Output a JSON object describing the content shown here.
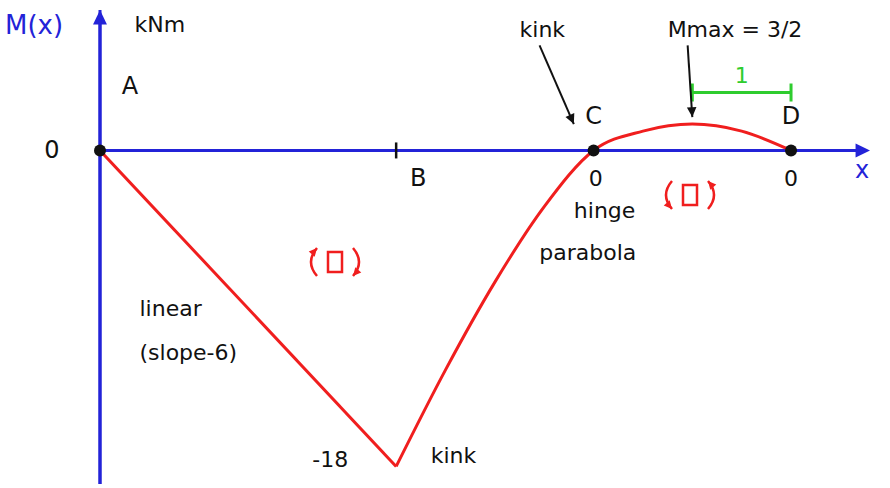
{
  "chart_data": {
    "type": "line",
    "ylabel": "M(x)",
    "xlabel": "x",
    "xlim": [
      0,
      7.8
    ],
    "ylim": [
      -19,
      8
    ],
    "yticks": [
      0
    ],
    "tick_labels": "y",
    "grid": false,
    "series": [
      {
        "type": "line",
        "line_style": "straight",
        "color": "#f01e1e",
        "x": [
          0,
          3
        ],
        "values": [
          0,
          -18
        ]
      },
      {
        "type": "line",
        "line_style": "smooth",
        "color": "#f01e1e",
        "x": [
          3,
          3.5,
          4,
          4.5,
          5,
          5.5,
          6,
          6.5,
          7
        ],
        "values": [
          -18,
          -12.5,
          -7.5,
          -3.2,
          0,
          1.1,
          1.5,
          1.1,
          0
        ]
      }
    ],
    "points": [
      {
        "label": "A",
        "x": 0,
        "y": 0,
        "marker": "dot"
      },
      {
        "label": "B",
        "x": 3,
        "y": 0,
        "marker": "tick"
      },
      {
        "label": "C",
        "x": 5,
        "y": 0,
        "marker": "dot"
      },
      {
        "label": "D",
        "x": 7,
        "y": 0,
        "marker": "dot"
      }
    ],
    "annotations": [
      {
        "text": "kNm",
        "x": 0.35,
        "y": 7.2
      },
      {
        "text": "linear",
        "x": 0.4,
        "y": -9
      },
      {
        "text": "(slope-6)",
        "x": 0.4,
        "y": -11.5
      },
      {
        "text": "-18",
        "x": 2.15,
        "y": -17.6
      },
      {
        "text": "kink",
        "x": 3.35,
        "y": -17.4
      },
      {
        "text": "parabola",
        "x": 4.45,
        "y": -5.8
      },
      {
        "text": "0",
        "x": 4.95,
        "y": -1.6
      },
      {
        "text": "hinge",
        "x": 4.8,
        "y": -3.4
      },
      {
        "text": "0",
        "x": 6.93,
        "y": -1.6
      },
      {
        "text": "kink",
        "x": 4.25,
        "y": 6.9,
        "arrow_to": [
          4.8,
          1.5
        ]
      },
      {
        "text": "Mmax = 3/2",
        "x": 5.75,
        "y": 6.9,
        "arrow_to": [
          6,
          1.9
        ]
      }
    ],
    "dimension": {
      "from": 6,
      "to": 7,
      "y": 3.3,
      "label": "1",
      "color": "#2ecc2e"
    }
  }
}
